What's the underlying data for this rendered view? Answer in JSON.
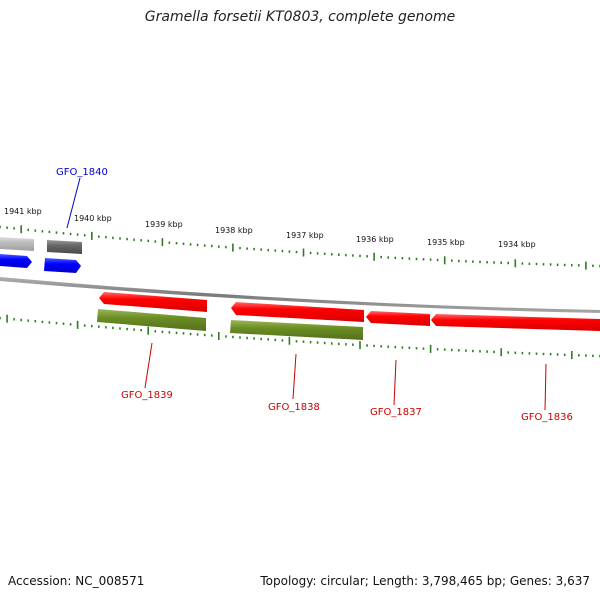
{
  "title": "Gramella forsetii KT0803, complete genome",
  "footer": {
    "accession": "Accession: NC_008571",
    "summary": "Topology: circular; Length: 3,798,465 bp; Genes: 3,637"
  },
  "colors": {
    "backbone": "#8a8a8a",
    "scale": "#2e7d1f",
    "cds": "#ff0000",
    "gene": "#6b8e23",
    "forward": "#0000ff",
    "forward_gray": "#666666",
    "forward_lightgray": "#bbbbbb",
    "label_forward": "#0000cc",
    "label_reverse": "#cc0000"
  },
  "scale_labels": [
    "1941 kbp",
    "1940 kbp",
    "1939 kbp",
    "1938 kbp",
    "1937 kbp",
    "1936 kbp",
    "1935 kbp",
    "1934 kbp"
  ],
  "gene_labels": {
    "forward": [
      "GFO_1840"
    ],
    "reverse": [
      "GFO_1839",
      "GFO_1838",
      "GFO_1837",
      "GFO_1836"
    ]
  }
}
